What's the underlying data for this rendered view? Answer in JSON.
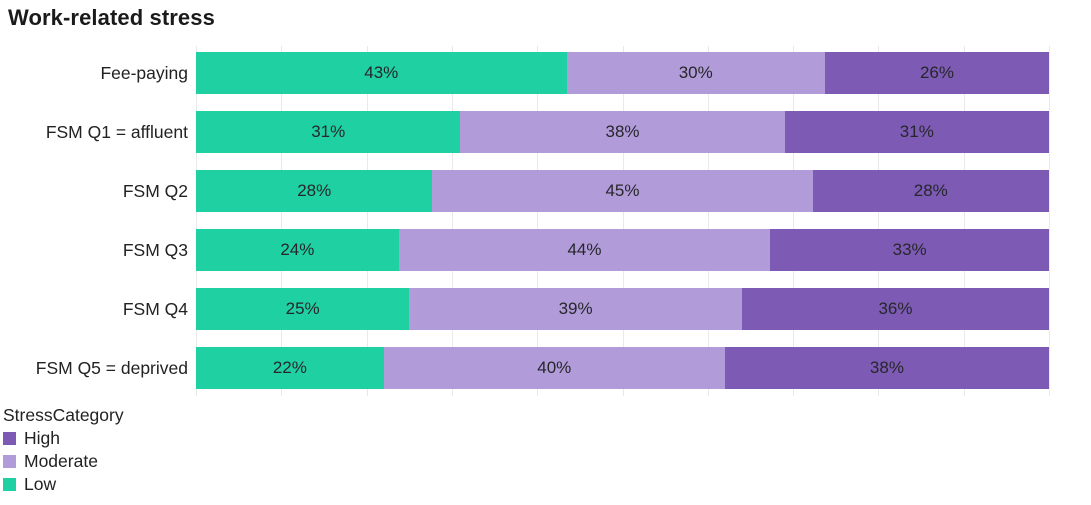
{
  "title": "Work-related stress",
  "chart_data": {
    "type": "bar",
    "orientation": "horizontal",
    "stacked": true,
    "normalized_to_100": true,
    "title": "Work-related stress",
    "categories": [
      "Fee-paying",
      "FSM Q1 = affluent",
      "FSM Q2",
      "FSM Q3",
      "FSM Q4",
      "FSM Q5 = deprived"
    ],
    "series": [
      {
        "name": "Low",
        "color": "#1fd0a2",
        "values": [
          43,
          31,
          28,
          24,
          25,
          22
        ]
      },
      {
        "name": "Moderate",
        "color": "#b19cd9",
        "values": [
          30,
          38,
          45,
          44,
          39,
          40
        ]
      },
      {
        "name": "High",
        "color": "#7d5bb5",
        "values": [
          26,
          31,
          28,
          33,
          36,
          38
        ]
      }
    ],
    "value_suffix": "%",
    "xlim": [
      0,
      100
    ],
    "grid": "vertical",
    "x_gridline_interval_percent": 10,
    "legend_position": "bottom-left"
  },
  "legend": {
    "title": "StressCategory",
    "items": [
      {
        "label": "High",
        "color": "#7d5bb5"
      },
      {
        "label": "Moderate",
        "color": "#b19cd9"
      },
      {
        "label": "Low",
        "color": "#1fd0a2"
      }
    ]
  },
  "colors": {
    "background": "#ffffff",
    "gridline": "#e9e9e9",
    "title_text": "#1a1a1a",
    "label_text": "#222222",
    "value_text": "#26262b"
  }
}
